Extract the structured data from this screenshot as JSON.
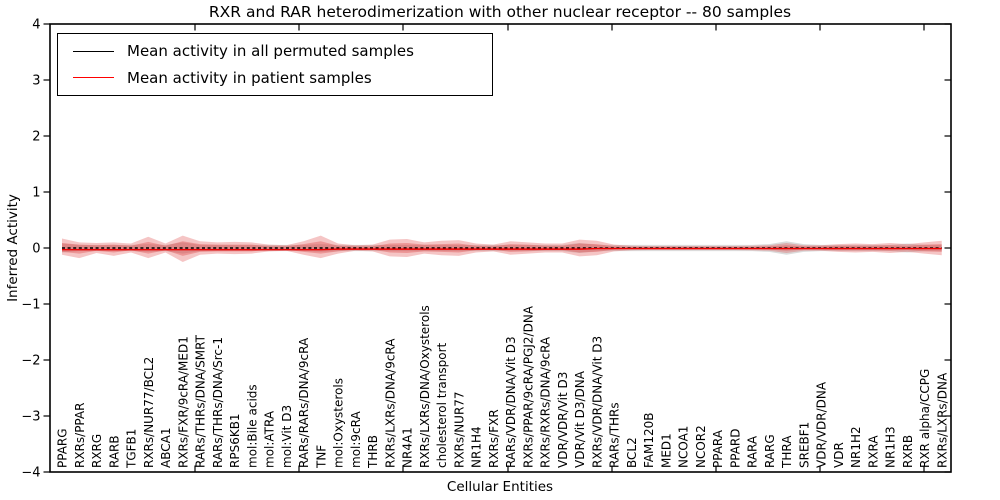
{
  "chart_data": {
    "type": "area",
    "title": "RXR and RAR heterodimerization with other nuclear receptor -- 80 samples",
    "xlabel": "Cellular Entities",
    "ylabel": "Inferred Activity",
    "ylim": [
      -4,
      4
    ],
    "yticks": [
      -4,
      -3,
      -2,
      -1,
      0,
      1,
      2,
      3,
      4
    ],
    "grid": false,
    "legend": {
      "position": "upper left",
      "items": [
        {
          "label": "Mean activity in all permuted samples",
          "color": "#000000"
        },
        {
          "label": "Mean activity in patient samples",
          "color": "#ff0000"
        }
      ]
    },
    "categories": [
      "PPARG",
      "RXRs/PPAR",
      "RXRG",
      "RARB",
      "TGFB1",
      "RXRs/NUR77/BCL2",
      "ABCA1",
      "RXRs/FXR/9cRA/MED1",
      "RARs/THRs/DNA/SMRT",
      "RARs/THRs/DNA/Src-1",
      "RPS6KB1",
      "mol:Bile acids",
      "mol:ATRA",
      "mol:Vit D3",
      "RARs/RARs/DNA/9cRA",
      "TNF",
      "mol:Oxysterols",
      "mol:9cRA",
      "THRB",
      "RXRs/LXRs/DNA/9cRA",
      "NR4A1",
      "RXRs/LXRs/DNA/Oxysterols",
      "cholesterol transport",
      "RXRs/NUR77",
      "NR1H4",
      "RXRs/FXR",
      "RARs/VDR/DNA/Vit D3",
      "RXRs/PPAR/9cRA/PGJ2/DNA",
      "RXRs/RXRs/DNA/9cRA",
      "VDR/VDR/Vit D3",
      "VDR/Vit D3/DNA",
      "RXRs/VDR/DNA/Vit D3",
      "RARs/THRs",
      "BCL2",
      "FAM120B",
      "MED1",
      "NCOA1",
      "NCOR2",
      "PPARA",
      "PPARD",
      "RARA",
      "RARG",
      "THRA",
      "SREBF1",
      "VDR/VDR/DNA",
      "VDR",
      "NR1H2",
      "RXRA",
      "NR1H3",
      "RXRB",
      "RXR alpha/CCPG",
      "RXRs/LXRs/DNA"
    ],
    "series": [
      {
        "name": "Permuted samples envelope",
        "type": "band",
        "color": "#909090",
        "opacity": 0.32,
        "upper": [
          0.08,
          0.055,
          0.055,
          0.055,
          0.055,
          0.07,
          0.055,
          0.1,
          0.055,
          0.055,
          0.055,
          0.055,
          0.055,
          0.055,
          0.055,
          0.07,
          0.055,
          0.055,
          0.055,
          0.055,
          0.055,
          0.055,
          0.055,
          0.055,
          0.055,
          0.055,
          0.055,
          0.055,
          0.055,
          0.055,
          0.09,
          0.055,
          0.055,
          0.055,
          0.055,
          0.055,
          0.055,
          0.055,
          0.055,
          0.055,
          0.055,
          0.07,
          0.12,
          0.07,
          0.055,
          0.055,
          0.055,
          0.055,
          0.055,
          0.08,
          0.055,
          0.055
        ],
        "lower": [
          -0.08,
          -0.055,
          -0.055,
          -0.055,
          -0.055,
          -0.07,
          -0.055,
          -0.1,
          -0.055,
          -0.055,
          -0.055,
          -0.055,
          -0.055,
          -0.055,
          -0.055,
          -0.07,
          -0.055,
          -0.055,
          -0.055,
          -0.055,
          -0.055,
          -0.055,
          -0.055,
          -0.055,
          -0.055,
          -0.055,
          -0.055,
          -0.055,
          -0.055,
          -0.055,
          -0.09,
          -0.055,
          -0.055,
          -0.055,
          -0.055,
          -0.055,
          -0.055,
          -0.055,
          -0.055,
          -0.055,
          -0.055,
          -0.07,
          -0.12,
          -0.07,
          -0.055,
          -0.055,
          -0.055,
          -0.055,
          -0.055,
          -0.08,
          -0.055,
          -0.055
        ]
      },
      {
        "name": "Patient samples envelope",
        "type": "band",
        "color": "#dd4040",
        "opacity": 0.3,
        "upper": [
          0.17,
          0.1,
          0.09,
          0.1,
          0.08,
          0.2,
          0.08,
          0.22,
          0.12,
          0.1,
          0.11,
          0.1,
          0.06,
          0.05,
          0.12,
          0.22,
          0.08,
          0.05,
          0.06,
          0.15,
          0.16,
          0.1,
          0.13,
          0.14,
          0.08,
          0.06,
          0.12,
          0.1,
          0.08,
          0.08,
          0.15,
          0.13,
          0.06,
          0.04,
          0.035,
          0.035,
          0.035,
          0.035,
          0.035,
          0.035,
          0.04,
          0.05,
          0.09,
          0.05,
          0.05,
          0.07,
          0.08,
          0.07,
          0.09,
          0.07,
          0.1,
          0.13
        ],
        "lower": [
          -0.12,
          -0.18,
          -0.09,
          -0.14,
          -0.08,
          -0.18,
          -0.08,
          -0.25,
          -0.12,
          -0.1,
          -0.11,
          -0.1,
          -0.06,
          -0.05,
          -0.12,
          -0.18,
          -0.1,
          -0.05,
          -0.06,
          -0.15,
          -0.16,
          -0.1,
          -0.13,
          -0.14,
          -0.08,
          -0.06,
          -0.12,
          -0.1,
          -0.08,
          -0.08,
          -0.15,
          -0.13,
          -0.06,
          -0.04,
          -0.035,
          -0.035,
          -0.035,
          -0.035,
          -0.035,
          -0.035,
          -0.04,
          -0.05,
          -0.09,
          -0.05,
          -0.05,
          -0.07,
          -0.08,
          -0.07,
          -0.09,
          -0.07,
          -0.1,
          -0.13
        ]
      },
      {
        "name": "Patient samples inner band",
        "type": "band",
        "color": "#dd4040",
        "opacity": 0.35,
        "upper": [
          0.09,
          0.06,
          0.05,
          0.06,
          0.04,
          0.11,
          0.04,
          0.12,
          0.07,
          0.06,
          0.06,
          0.06,
          0.03,
          0.03,
          0.07,
          0.12,
          0.04,
          0.03,
          0.03,
          0.08,
          0.09,
          0.06,
          0.07,
          0.08,
          0.04,
          0.03,
          0.07,
          0.06,
          0.04,
          0.04,
          0.08,
          0.07,
          0.03,
          0.02,
          0.02,
          0.02,
          0.02,
          0.02,
          0.02,
          0.02,
          0.02,
          0.03,
          0.05,
          0.03,
          0.03,
          0.04,
          0.04,
          0.04,
          0.05,
          0.04,
          0.06,
          0.07
        ],
        "lower": [
          -0.07,
          -0.1,
          -0.05,
          -0.08,
          -0.04,
          -0.1,
          -0.04,
          -0.14,
          -0.07,
          -0.06,
          -0.06,
          -0.06,
          -0.03,
          -0.03,
          -0.07,
          -0.1,
          -0.06,
          -0.03,
          -0.03,
          -0.08,
          -0.09,
          -0.06,
          -0.07,
          -0.08,
          -0.04,
          -0.03,
          -0.07,
          -0.06,
          -0.04,
          -0.04,
          -0.08,
          -0.07,
          -0.03,
          -0.02,
          -0.02,
          -0.02,
          -0.02,
          -0.02,
          -0.02,
          -0.02,
          -0.02,
          -0.03,
          -0.05,
          -0.03,
          -0.03,
          -0.04,
          -0.04,
          -0.04,
          -0.05,
          -0.04,
          -0.06,
          -0.07
        ]
      },
      {
        "name": "Mean activity in all permuted samples",
        "type": "line",
        "style": "dashed",
        "color": "#000000",
        "values": [
          0,
          0,
          0,
          0,
          0,
          0,
          0,
          0,
          0,
          0,
          0,
          0,
          0,
          0,
          0,
          0,
          0,
          0,
          0,
          0,
          0,
          0,
          0,
          0,
          0,
          0,
          0,
          0,
          0,
          0,
          0,
          0,
          0,
          0,
          0,
          0,
          0,
          0,
          0,
          0,
          0,
          0,
          0,
          0,
          0,
          0,
          0,
          0,
          0,
          0,
          0,
          0
        ]
      },
      {
        "name": "Mean activity in patient samples",
        "type": "line",
        "style": "solid",
        "color": "#ee0000",
        "values": [
          -0.03,
          -0.03,
          -0.03,
          -0.03,
          -0.03,
          -0.03,
          -0.03,
          -0.03,
          -0.03,
          -0.03,
          -0.03,
          -0.03,
          -0.03,
          -0.03,
          -0.03,
          -0.03,
          -0.02,
          -0.02,
          -0.02,
          -0.02,
          -0.02,
          -0.02,
          -0.02,
          -0.02,
          -0.02,
          -0.02,
          -0.02,
          -0.02,
          -0.02,
          -0.02,
          -0.02,
          -0.01,
          -0.01,
          -0.01,
          -0.01,
          -0.01,
          -0.01,
          -0.01,
          -0.01,
          -0.01,
          -0.01,
          -0.01,
          -0.01,
          -0.01,
          -0.01,
          -0.01,
          -0.01,
          -0.01,
          -0.01,
          -0.01,
          -0.01,
          -0.01
        ]
      }
    ],
    "layout": {
      "frame_color": "#000000",
      "top_tick_xs": [
        195,
        299,
        403,
        508,
        612,
        716,
        820,
        924
      ]
    }
  }
}
